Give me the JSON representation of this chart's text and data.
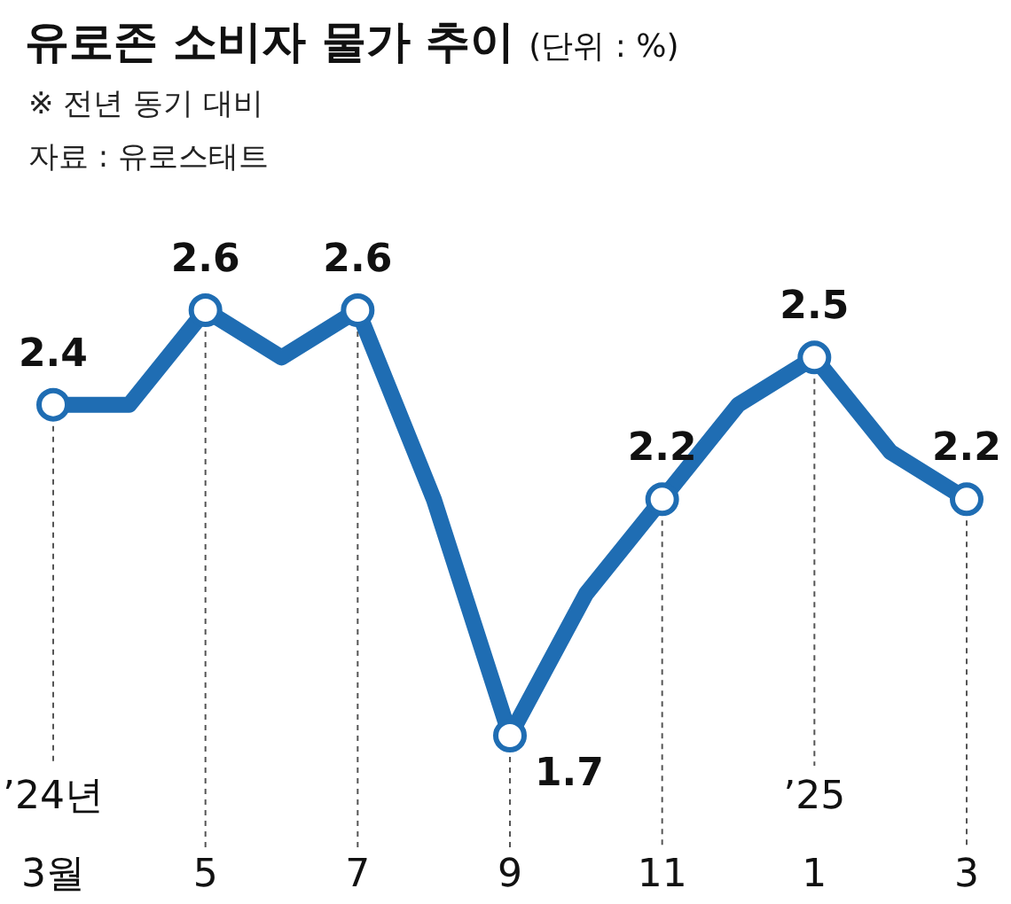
{
  "chart_data": {
    "type": "line",
    "title": "유로존 소비자 물가 추이",
    "subtitle": "(단위 : %)",
    "annotations": [
      "※ 전년 동기 대비",
      "자료 : 유로스태트"
    ],
    "categories": [
      "’24년\n3월",
      null,
      "5",
      null,
      "7",
      null,
      "9",
      null,
      "11",
      null,
      "’25\n1",
      null,
      "3"
    ],
    "series": [
      {
        "color": "#1f6db3",
        "values": [
          2.4,
          2.4,
          2.6,
          2.5,
          2.6,
          2.2,
          1.7,
          2.0,
          2.2,
          2.4,
          2.5,
          2.3,
          2.2
        ],
        "value_labels": [
          "2.4",
          null,
          "2.6",
          null,
          "2.6",
          null,
          "1.7",
          null,
          "2.2",
          null,
          "2.5",
          null,
          "2.2"
        ]
      }
    ],
    "marker": "circle",
    "line_style": "solid",
    "grid": "x"
  }
}
